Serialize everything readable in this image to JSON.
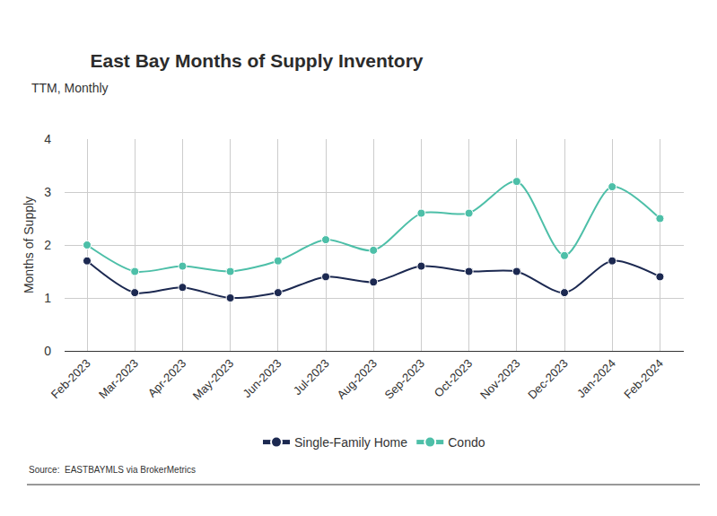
{
  "chart_data": {
    "type": "line",
    "title": "East Bay Months of Supply Inventory",
    "subtitle": "TTM, Monthly",
    "y_label": "Months of Supply",
    "source": "Source:  EASTBAYMLS via BrokerMetrics",
    "categories": [
      "Feb-2023",
      "Mar-2023",
      "Apr-2023",
      "May-2023",
      "Jun-2023",
      "Jul-2023",
      "Aug-2023",
      "Sep-2023",
      "Oct-2023",
      "Nov-2023",
      "Dec-2023",
      "Jan-2024",
      "Feb-2024"
    ],
    "series": [
      {
        "name": "Single-Family Home",
        "color": "#1c2951",
        "marker": "circle",
        "line_style": "solid",
        "values": [
          1.7,
          1.1,
          1.2,
          1.0,
          1.1,
          1.4,
          1.3,
          1.6,
          1.5,
          1.5,
          1.1,
          1.7,
          1.4
        ]
      },
      {
        "name": "Condo",
        "color": "#4dbfa8",
        "marker": "circle",
        "line_style": "solid",
        "values": [
          2.0,
          1.5,
          1.6,
          1.5,
          1.7,
          2.1,
          1.9,
          2.6,
          2.6,
          3.2,
          1.8,
          3.1,
          2.5
        ]
      }
    ],
    "ylim": [
      0,
      4
    ],
    "yticks": [
      0,
      1,
      2,
      3,
      4
    ],
    "grid": true,
    "legend": "bottom"
  }
}
